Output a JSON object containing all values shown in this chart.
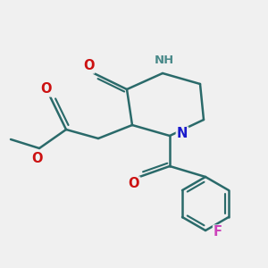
{
  "bg_color": "#f0f0f0",
  "bond_color": "#2a6a6a",
  "N_color": "#1a1acc",
  "NH_color": "#4a8a8a",
  "O_color": "#cc1111",
  "F_color": "#cc44bb",
  "lw": 1.8,
  "dbo": 0.048,
  "figsize": [
    3.0,
    3.0
  ],
  "dpi": 100,
  "xlim": [
    0,
    3
  ],
  "ylim": [
    0,
    3
  ]
}
